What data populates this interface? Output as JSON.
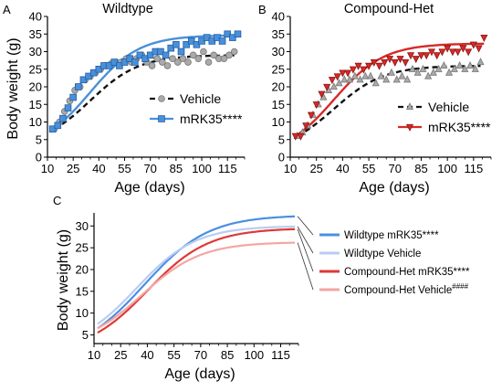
{
  "chart_data": [
    {
      "panel": "A",
      "type": "scatter",
      "title": "Wildtype",
      "xlabel": "Age (days)",
      "ylabel": "Body weight (g)",
      "xticks": [
        10,
        25,
        40,
        55,
        70,
        85,
        100,
        115
      ],
      "yticks": [
        0,
        5,
        10,
        15,
        20,
        25,
        30,
        35,
        40
      ],
      "xlim": [
        10,
        125
      ],
      "ylim": [
        0,
        40
      ],
      "legend_position": "right",
      "series": [
        {
          "name": "Vehicle",
          "marker": "circle",
          "color": "#aaaaaa",
          "fit_color": "#111111",
          "fit_dash": true,
          "x": [
            14,
            17,
            20,
            23,
            26,
            29,
            32,
            35,
            38,
            41,
            44,
            47,
            50,
            53,
            56,
            59,
            62,
            65,
            68,
            71,
            74,
            77,
            80,
            83,
            86,
            89,
            92,
            95,
            98,
            101,
            104,
            107,
            110,
            113,
            116,
            119
          ],
          "y": [
            8,
            10,
            13,
            16,
            19,
            20,
            22,
            23,
            24,
            25,
            26,
            26.5,
            27,
            27,
            28,
            27,
            28,
            29,
            27,
            26,
            28,
            27,
            26,
            28,
            27,
            28,
            27,
            29,
            28,
            30,
            27,
            29,
            28,
            28,
            29,
            30
          ]
        },
        {
          "name": "mRK35****",
          "marker": "square",
          "color": "#4a90d9",
          "fit_color": "#4a90d9",
          "x": [
            13,
            16,
            19,
            22,
            25,
            28,
            31,
            34,
            37,
            40,
            43,
            46,
            49,
            52,
            55,
            58,
            61,
            64,
            67,
            70,
            73,
            76,
            79,
            82,
            85,
            88,
            91,
            94,
            97,
            100,
            103,
            106,
            109,
            112,
            115,
            118,
            121
          ],
          "y": [
            8,
            9,
            11,
            14,
            17,
            20,
            22,
            23,
            24,
            25,
            26,
            26,
            27,
            26,
            27,
            28,
            27,
            29,
            28,
            29,
            30,
            30,
            29,
            31,
            32,
            30,
            32,
            33,
            32,
            33,
            34,
            33,
            34,
            33,
            35,
            34,
            35
          ]
        }
      ]
    },
    {
      "panel": "B",
      "type": "scatter",
      "title": "Compound-Het",
      "xlabel": "Age (days)",
      "xticks": [
        10,
        25,
        40,
        55,
        70,
        85,
        100,
        115
      ],
      "yticks": [
        0,
        5,
        10,
        15,
        20,
        25,
        30,
        35,
        40
      ],
      "xlim": [
        10,
        125
      ],
      "ylim": [
        0,
        40
      ],
      "legend_position": "right",
      "series": [
        {
          "name": "Vehicle",
          "marker": "triangle-up",
          "color": "#aaaaaa",
          "fit_color": "#111111",
          "fit_dash": true,
          "x": [
            14,
            17,
            20,
            23,
            26,
            29,
            32,
            35,
            38,
            41,
            44,
            47,
            50,
            53,
            56,
            59,
            62,
            65,
            68,
            71,
            74,
            77,
            80,
            83,
            86,
            89,
            92,
            95,
            98,
            101,
            104,
            107,
            110,
            113,
            116,
            119
          ],
          "y": [
            6,
            7,
            9,
            12,
            15,
            17,
            19,
            20,
            21,
            22,
            22,
            23,
            22,
            23,
            23,
            21,
            23,
            22,
            24,
            22,
            23,
            22,
            25,
            24,
            25,
            23,
            24,
            25,
            26,
            24,
            25,
            26,
            25,
            26,
            25,
            27
          ]
        },
        {
          "name": "mRK35****",
          "marker": "triangle-down",
          "color": "#d62a28",
          "fit_color": "#d62a28",
          "x": [
            13,
            16,
            19,
            22,
            25,
            28,
            31,
            34,
            37,
            40,
            43,
            46,
            49,
            52,
            55,
            58,
            61,
            64,
            67,
            70,
            73,
            76,
            79,
            82,
            85,
            88,
            91,
            94,
            97,
            100,
            103,
            106,
            109,
            112,
            115,
            118,
            121
          ],
          "y": [
            6,
            6,
            9,
            12,
            15,
            18,
            20,
            22,
            23,
            24,
            24,
            25,
            26,
            25,
            26,
            27,
            26,
            27,
            28,
            27,
            28,
            27,
            29,
            28,
            29,
            29,
            30,
            29,
            30,
            31,
            30,
            30,
            31,
            30,
            32,
            31,
            34
          ]
        }
      ]
    },
    {
      "panel": "C",
      "type": "line",
      "xlabel": "Age (days)",
      "ylabel": "Body weight (g)",
      "xticks": [
        10,
        25,
        40,
        55,
        70,
        85,
        100,
        115
      ],
      "yticks": [
        5,
        10,
        15,
        20,
        25,
        30
      ],
      "xlim": [
        10,
        125
      ],
      "ylim": [
        3,
        33
      ],
      "legend_position": "right",
      "series": [
        {
          "name": "Wildtype mRK35****",
          "color": "#4a90e2",
          "start": 6.5,
          "plateau": 32.5,
          "k": 0.055,
          "mid": 38
        },
        {
          "name": "Wildtype Vehicle",
          "color": "#b9cdf0",
          "start": 7.5,
          "plateau": 30.0,
          "k": 0.06,
          "mid": 34
        },
        {
          "name": "Compound-Het mRK35****",
          "color": "#dd3a38",
          "start": 5.5,
          "plateau": 29.5,
          "k": 0.058,
          "mid": 40
        },
        {
          "name": "Compound-Het Vehicle",
          "name_suffix": "####",
          "color": "#f3a7a3",
          "start": 6.5,
          "plateau": 26.3,
          "k": 0.06,
          "mid": 37
        }
      ]
    }
  ]
}
